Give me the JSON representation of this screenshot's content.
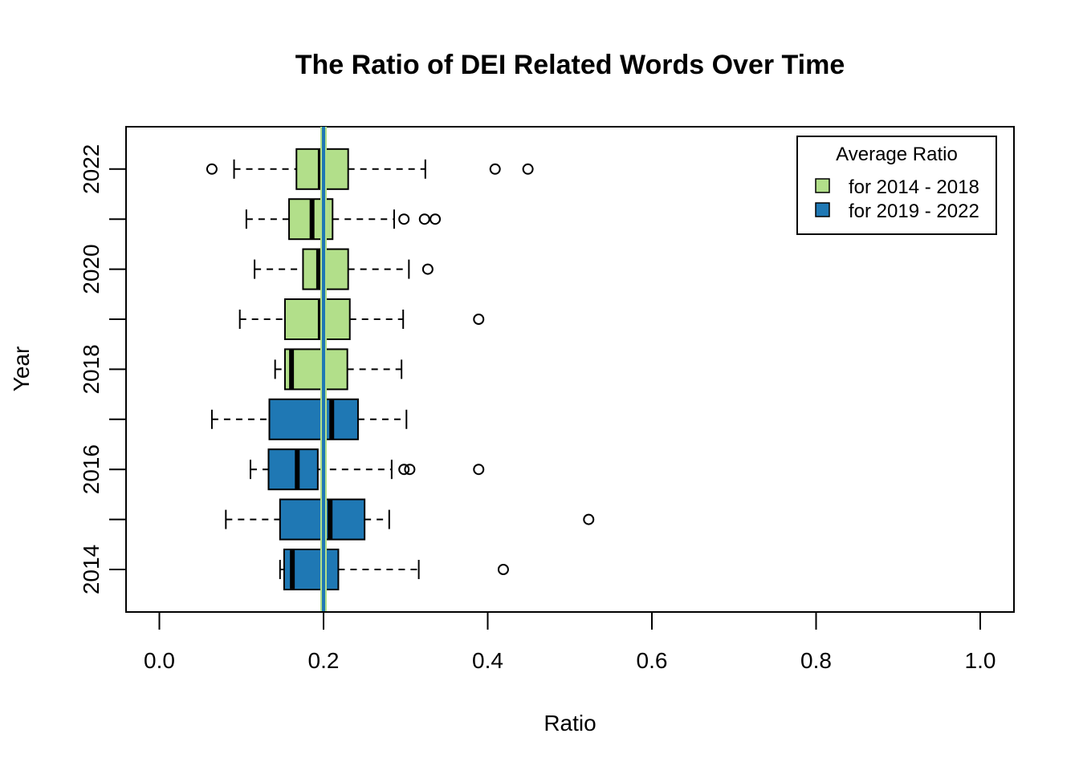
{
  "chart_data": {
    "type": "boxplot",
    "orientation": "horizontal",
    "title": "The Ratio of DEI Related Words Over Time",
    "xlabel": "Ratio",
    "ylabel": "Year",
    "xlim": [
      0.0,
      1.0
    ],
    "x_ticks": [
      "0.0",
      "0.2",
      "0.4",
      "0.6",
      "0.8",
      "1.0"
    ],
    "x_tick_values": [
      0.0,
      0.2,
      0.4,
      0.6,
      0.8,
      1.0
    ],
    "y_tick_labels": [
      "2014",
      "2016",
      "2018",
      "2020",
      "2022"
    ],
    "y_tick_years": [
      2014,
      2016,
      2018,
      2020,
      2022
    ],
    "reference_line": {
      "x": 0.2,
      "colors": [
        "#B2DF8A",
        "#1F78B4"
      ]
    },
    "legend": {
      "title": "Average Ratio",
      "position": "top-right",
      "entries": [
        {
          "label": "for 2014 - 2018",
          "color": "#B2DF8A"
        },
        {
          "label": "for 2019 - 2022",
          "color": "#1F78B4"
        }
      ]
    },
    "boxes": [
      {
        "year": 2014,
        "color": "#1F78B4",
        "whisker_low": 0.147,
        "q1": 0.152,
        "median": 0.162,
        "q3": 0.218,
        "whisker_high": 0.316,
        "outliers": [
          0.419
        ]
      },
      {
        "year": 2015,
        "color": "#1F78B4",
        "whisker_low": 0.081,
        "q1": 0.147,
        "median": 0.208,
        "q3": 0.25,
        "whisker_high": 0.28,
        "outliers": [
          0.523
        ]
      },
      {
        "year": 2016,
        "color": "#1F78B4",
        "whisker_low": 0.111,
        "q1": 0.133,
        "median": 0.168,
        "q3": 0.193,
        "whisker_high": 0.283,
        "outliers": [
          0.298,
          0.305,
          0.389
        ]
      },
      {
        "year": 2017,
        "color": "#1F78B4",
        "whisker_low": 0.064,
        "q1": 0.134,
        "median": 0.21,
        "q3": 0.242,
        "whisker_high": 0.301,
        "outliers": []
      },
      {
        "year": 2018,
        "color": "#B2DF8A",
        "whisker_low": 0.141,
        "q1": 0.153,
        "median": 0.161,
        "q3": 0.229,
        "whisker_high": 0.295,
        "outliers": []
      },
      {
        "year": 2019,
        "color": "#B2DF8A",
        "whisker_low": 0.098,
        "q1": 0.153,
        "median": 0.196,
        "q3": 0.232,
        "whisker_high": 0.297,
        "outliers": [
          0.389
        ]
      },
      {
        "year": 2020,
        "color": "#B2DF8A",
        "whisker_low": 0.116,
        "q1": 0.175,
        "median": 0.194,
        "q3": 0.23,
        "whisker_high": 0.304,
        "outliers": [
          0.327
        ]
      },
      {
        "year": 2021,
        "color": "#B2DF8A",
        "whisker_low": 0.106,
        "q1": 0.158,
        "median": 0.186,
        "q3": 0.211,
        "whisker_high": 0.286,
        "outliers": [
          0.298,
          0.323,
          0.336
        ]
      },
      {
        "year": 2022,
        "color": "#B2DF8A",
        "whisker_low": 0.091,
        "q1": 0.167,
        "median": 0.196,
        "q3": 0.23,
        "whisker_high": 0.324,
        "outliers": [
          0.064,
          0.409,
          0.449
        ]
      }
    ]
  }
}
